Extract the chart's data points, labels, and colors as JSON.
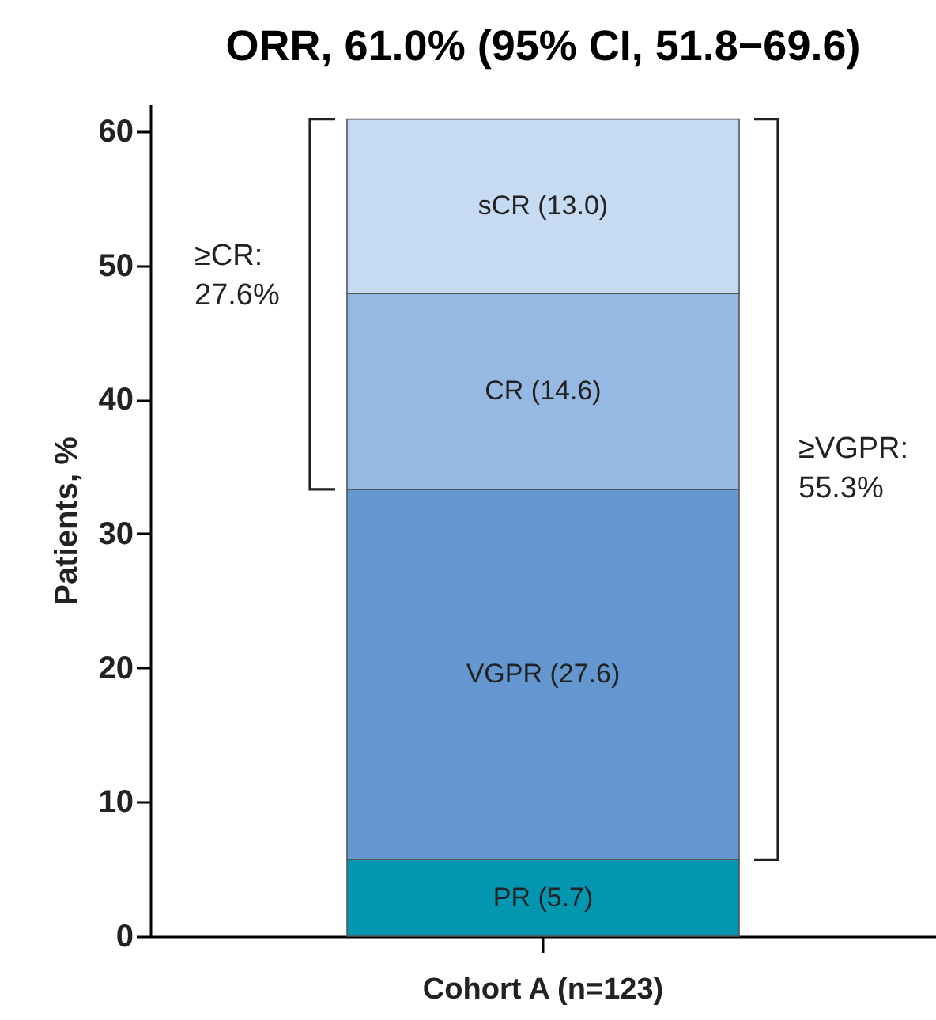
{
  "chart_data": {
    "type": "bar",
    "stacked": true,
    "title": "ORR, 61.0% (95% CI, 51.8−69.6)",
    "ylabel": "Patients, %",
    "categories": [
      "Cohort  A (n=123)"
    ],
    "series": [
      {
        "color": "#0396b1",
        "values": [
          5.7
        ],
        "value_labels": [
          "PR (5.7)"
        ]
      },
      {
        "color": "#6497d0",
        "values": [
          27.6
        ],
        "value_labels": [
          "VGPR (27.6)"
        ]
      },
      {
        "color": "#96b9e4",
        "values": [
          14.6
        ],
        "value_labels": [
          "CR (14.6)"
        ]
      },
      {
        "color": "#c6daf2",
        "values": [
          13.0
        ],
        "value_labels": [
          "sCR (13.0)"
        ]
      }
    ],
    "ylim": [
      0,
      62
    ],
    "yticks": [
      0,
      10,
      20,
      30,
      40,
      50,
      60
    ],
    "grid": false,
    "legend": false,
    "annotations": [
      "≥CR: 27.6%",
      "≥VGPR: 55.3%"
    ]
  }
}
